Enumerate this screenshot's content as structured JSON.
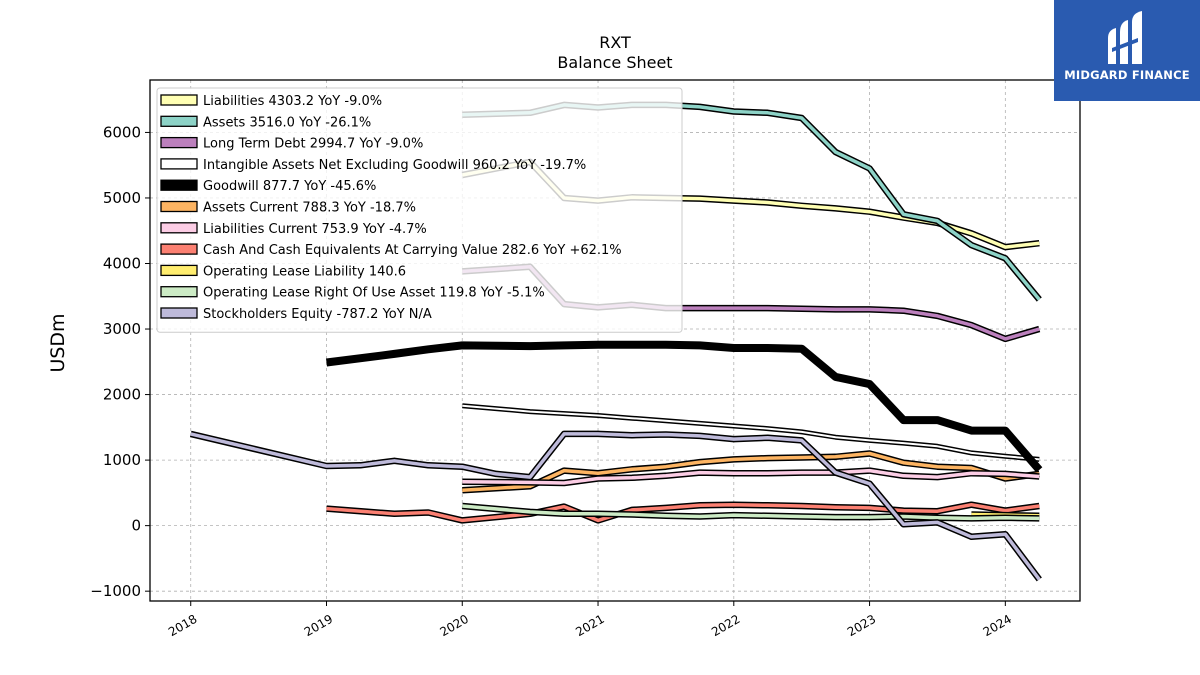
{
  "brand": {
    "name": "MIDGARD FINANCE",
    "bg_color": "#2a5bb0"
  },
  "chart_data": {
    "type": "line",
    "title": "RXT",
    "subtitle": "Balance  Sheet",
    "ylabel": "USDm",
    "xlabel": "",
    "xlim": [
      2017.7,
      2024.55
    ],
    "ylim": [
      -1150,
      6800
    ],
    "grid": true,
    "legend_position": "top-left",
    "x_ticks": [
      2018,
      2019,
      2020,
      2021,
      2022,
      2023,
      2024
    ],
    "x_tick_labels": [
      "2018",
      "2019",
      "2020",
      "2021",
      "2022",
      "2023",
      "2024"
    ],
    "y_ticks": [
      -1000,
      0,
      1000,
      2000,
      3000,
      4000,
      5000,
      6000
    ],
    "y_tick_labels": [
      "−1000",
      "0",
      "1000",
      "2000",
      "3000",
      "4000",
      "5000",
      "6000"
    ],
    "series": [
      {
        "name": "Liabilities  4303.2 YoY -9.0%",
        "color": "#ffffb3",
        "width": 3.5,
        "points": [
          [
            2020.0,
            5350
          ],
          [
            2020.5,
            5550
          ],
          [
            2020.75,
            5000
          ],
          [
            2021.0,
            4960
          ],
          [
            2021.25,
            5010
          ],
          [
            2021.5,
            5000
          ],
          [
            2021.75,
            4990
          ],
          [
            2022.0,
            4960
          ],
          [
            2022.25,
            4930
          ],
          [
            2022.5,
            4880
          ],
          [
            2022.75,
            4840
          ],
          [
            2023.0,
            4790
          ],
          [
            2023.25,
            4700
          ],
          [
            2023.5,
            4620
          ],
          [
            2023.75,
            4460
          ],
          [
            2024.0,
            4250
          ],
          [
            2024.25,
            4310
          ]
        ]
      },
      {
        "name": "Assets  3516.0 YoY -26.1%",
        "color": "#8dd3c7",
        "width": 3.5,
        "points": [
          [
            2020.0,
            6270
          ],
          [
            2020.5,
            6300
          ],
          [
            2020.75,
            6420
          ],
          [
            2021.0,
            6380
          ],
          [
            2021.25,
            6420
          ],
          [
            2021.5,
            6420
          ],
          [
            2021.75,
            6390
          ],
          [
            2022.0,
            6320
          ],
          [
            2022.25,
            6300
          ],
          [
            2022.5,
            6220
          ],
          [
            2022.75,
            5700
          ],
          [
            2023.0,
            5450
          ],
          [
            2023.25,
            4750
          ],
          [
            2023.5,
            4650
          ],
          [
            2023.75,
            4280
          ],
          [
            2024.0,
            4080
          ],
          [
            2024.25,
            3450
          ]
        ]
      },
      {
        "name": "Long Term Debt  2994.7 YoY -9.0%",
        "color": "#bc80bd",
        "width": 3.5,
        "points": [
          [
            2020.0,
            3880
          ],
          [
            2020.5,
            3950
          ],
          [
            2020.75,
            3380
          ],
          [
            2021.0,
            3330
          ],
          [
            2021.25,
            3370
          ],
          [
            2021.5,
            3320
          ],
          [
            2021.75,
            3320
          ],
          [
            2022.0,
            3320
          ],
          [
            2022.25,
            3320
          ],
          [
            2022.5,
            3310
          ],
          [
            2022.75,
            3300
          ],
          [
            2023.0,
            3300
          ],
          [
            2023.25,
            3280
          ],
          [
            2023.5,
            3200
          ],
          [
            2023.75,
            3060
          ],
          [
            2024.0,
            2850
          ],
          [
            2024.25,
            3000
          ]
        ]
      },
      {
        "name": "Intangible Assets Net Excluding Goodwill  960.2 YoY -19.7%",
        "color": "#ffffff",
        "width": 2.0,
        "points": [
          [
            2020.0,
            1830
          ],
          [
            2020.5,
            1740
          ],
          [
            2021.0,
            1680
          ],
          [
            2021.25,
            1640
          ],
          [
            2021.5,
            1600
          ],
          [
            2021.75,
            1560
          ],
          [
            2022.0,
            1520
          ],
          [
            2022.25,
            1480
          ],
          [
            2022.5,
            1430
          ],
          [
            2022.75,
            1350
          ],
          [
            2023.0,
            1300
          ],
          [
            2023.25,
            1260
          ],
          [
            2023.5,
            1210
          ],
          [
            2023.75,
            1110
          ],
          [
            2024.0,
            1060
          ],
          [
            2024.25,
            1010
          ]
        ]
      },
      {
        "name": "Goodwill  877.7 YoY -45.6%",
        "color": "#000000",
        "width": 8.0,
        "points": [
          [
            2019.0,
            2490
          ],
          [
            2019.5,
            2620
          ],
          [
            2019.75,
            2690
          ],
          [
            2020.0,
            2750
          ],
          [
            2020.5,
            2740
          ],
          [
            2020.75,
            2750
          ],
          [
            2021.0,
            2760
          ],
          [
            2021.25,
            2760
          ],
          [
            2021.5,
            2760
          ],
          [
            2021.75,
            2750
          ],
          [
            2022.0,
            2710
          ],
          [
            2022.25,
            2710
          ],
          [
            2022.5,
            2700
          ],
          [
            2022.75,
            2270
          ],
          [
            2023.0,
            2160
          ],
          [
            2023.25,
            1610
          ],
          [
            2023.5,
            1610
          ],
          [
            2023.75,
            1450
          ],
          [
            2024.0,
            1450
          ],
          [
            2024.25,
            850
          ]
        ]
      },
      {
        "name": "Assets Current  788.3 YoY -18.7%",
        "color": "#fdb462",
        "width": 3.5,
        "points": [
          [
            2020.0,
            540
          ],
          [
            2020.5,
            600
          ],
          [
            2020.75,
            840
          ],
          [
            2021.0,
            800
          ],
          [
            2021.25,
            860
          ],
          [
            2021.5,
            900
          ],
          [
            2021.75,
            970
          ],
          [
            2022.0,
            1010
          ],
          [
            2022.25,
            1030
          ],
          [
            2022.5,
            1040
          ],
          [
            2022.75,
            1050
          ],
          [
            2023.0,
            1100
          ],
          [
            2023.25,
            960
          ],
          [
            2023.5,
            900
          ],
          [
            2023.75,
            880
          ],
          [
            2024.0,
            720
          ],
          [
            2024.25,
            790
          ]
        ]
      },
      {
        "name": "Liabilities Current  753.9 YoY -4.7%",
        "color": "#fccde5",
        "width": 3.5,
        "points": [
          [
            2020.0,
            670
          ],
          [
            2020.5,
            660
          ],
          [
            2020.75,
            650
          ],
          [
            2021.0,
            720
          ],
          [
            2021.25,
            730
          ],
          [
            2021.5,
            760
          ],
          [
            2021.75,
            810
          ],
          [
            2022.0,
            800
          ],
          [
            2022.25,
            800
          ],
          [
            2022.5,
            810
          ],
          [
            2022.75,
            810
          ],
          [
            2023.0,
            840
          ],
          [
            2023.25,
            760
          ],
          [
            2023.5,
            740
          ],
          [
            2023.75,
            800
          ],
          [
            2024.0,
            790
          ],
          [
            2024.25,
            750
          ]
        ]
      },
      {
        "name": "Cash And Cash Equivalents At Carrying Value  282.6 YoY +62.1%",
        "color": "#fb8072",
        "width": 3.5,
        "points": [
          [
            2019.0,
            260
          ],
          [
            2019.5,
            180
          ],
          [
            2019.75,
            200
          ],
          [
            2020.0,
            80
          ],
          [
            2020.5,
            180
          ],
          [
            2020.75,
            290
          ],
          [
            2021.0,
            80
          ],
          [
            2021.25,
            240
          ],
          [
            2021.5,
            270
          ],
          [
            2021.75,
            310
          ],
          [
            2022.0,
            320
          ],
          [
            2022.25,
            310
          ],
          [
            2022.5,
            300
          ],
          [
            2022.75,
            280
          ],
          [
            2023.0,
            270
          ],
          [
            2023.25,
            230
          ],
          [
            2023.5,
            220
          ],
          [
            2023.75,
            320
          ],
          [
            2024.0,
            230
          ],
          [
            2024.25,
            300
          ]
        ]
      },
      {
        "name": "Operating Lease Liability  140.6",
        "color": "#ffed6f",
        "width": 3.5,
        "points": [
          [
            2023.75,
            170
          ],
          [
            2024.0,
            160
          ],
          [
            2024.25,
            150
          ]
        ]
      },
      {
        "name": "Operating Lease Right Of Use Asset  119.8 YoY -5.1%",
        "color": "#ccebc5",
        "width": 3.5,
        "points": [
          [
            2020.0,
            300
          ],
          [
            2020.5,
            210
          ],
          [
            2020.75,
            180
          ],
          [
            2021.0,
            180
          ],
          [
            2021.25,
            170
          ],
          [
            2021.5,
            150
          ],
          [
            2021.75,
            140
          ],
          [
            2022.0,
            160
          ],
          [
            2022.25,
            150
          ],
          [
            2022.5,
            140
          ],
          [
            2022.75,
            130
          ],
          [
            2023.0,
            130
          ],
          [
            2023.25,
            140
          ],
          [
            2023.5,
            120
          ],
          [
            2023.75,
            110
          ],
          [
            2024.0,
            120
          ],
          [
            2024.25,
            110
          ]
        ]
      },
      {
        "name": "Stockholders Equity  -787.2 YoY N/A",
        "color": "#bebada",
        "width": 3.5,
        "points": [
          [
            2018.0,
            1400
          ],
          [
            2019.0,
            910
          ],
          [
            2019.25,
            920
          ],
          [
            2019.5,
            990
          ],
          [
            2019.75,
            920
          ],
          [
            2020.0,
            900
          ],
          [
            2020.25,
            790
          ],
          [
            2020.5,
            740
          ],
          [
            2020.75,
            1400
          ],
          [
            2021.0,
            1400
          ],
          [
            2021.25,
            1380
          ],
          [
            2021.5,
            1390
          ],
          [
            2021.75,
            1370
          ],
          [
            2022.0,
            1320
          ],
          [
            2022.25,
            1340
          ],
          [
            2022.5,
            1300
          ],
          [
            2022.75,
            810
          ],
          [
            2023.0,
            640
          ],
          [
            2023.25,
            20
          ],
          [
            2023.5,
            50
          ],
          [
            2023.75,
            -170
          ],
          [
            2024.0,
            -130
          ],
          [
            2024.25,
            -820
          ]
        ]
      }
    ]
  }
}
